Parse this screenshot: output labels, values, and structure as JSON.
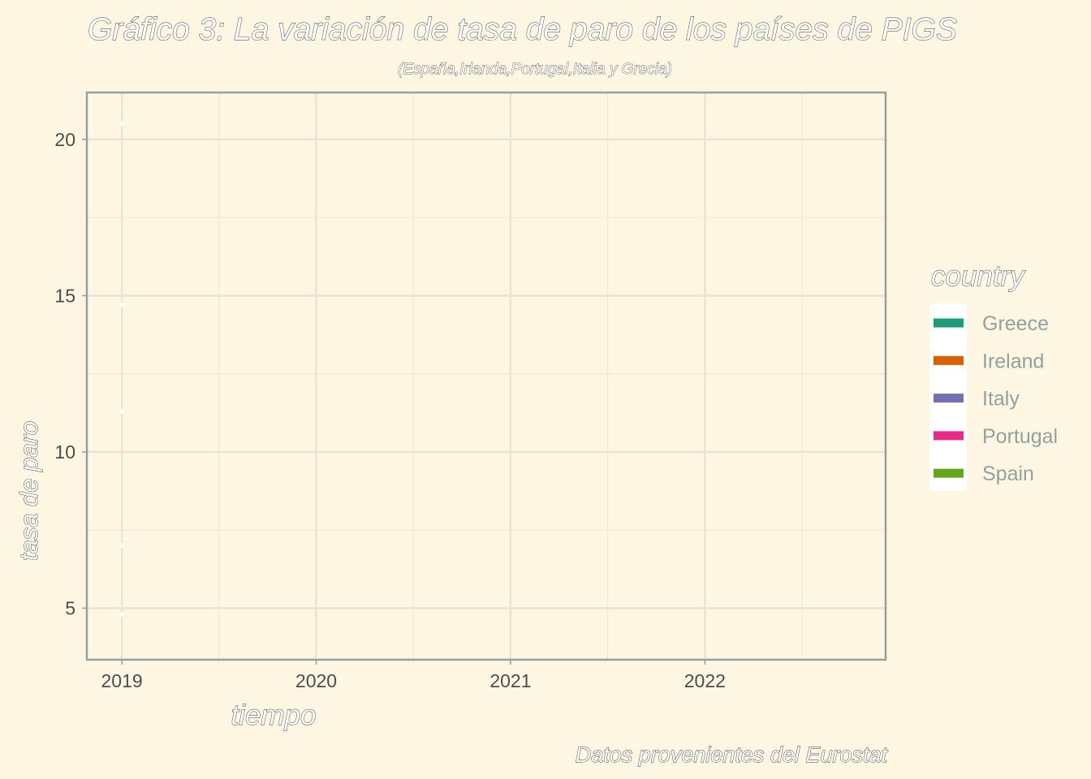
{
  "chart_data": {
    "type": "line",
    "title": "Gráfico 3: La variación de tasa de paro de los países de PIGS",
    "subtitle": "(España,Irlanda,Portugal,Italia y Grecia)",
    "xlabel": "tiempo",
    "ylabel": "tasa de paro",
    "caption": "Datos provenientes del Eurostat",
    "x_ticks": [
      "2019",
      "2020",
      "2021",
      "2022"
    ],
    "y_ticks": [
      "5",
      "10",
      "15",
      "20"
    ],
    "xlim": [
      2018.82,
      2022.93
    ],
    "ylim": [
      3.35,
      21.5
    ],
    "grid": true,
    "legend": {
      "title": "country",
      "position": "right",
      "entries": [
        "Greece",
        "Ireland",
        "Italy",
        "Portugal",
        "Spain"
      ]
    },
    "series": [
      {
        "name": "Greece",
        "color": "#1b9e77",
        "x": [
          2019
        ],
        "y": [
          20.5
        ]
      },
      {
        "name": "Spain",
        "color": "#66a61e",
        "x": [
          2019
        ],
        "y": [
          14.7
        ]
      },
      {
        "name": "Italy",
        "color": "#7570b3",
        "x": [
          2019
        ],
        "y": [
          11.3
        ]
      },
      {
        "name": "Portugal",
        "color": "#e7298a",
        "x": [
          2019
        ],
        "y": [
          7.0
        ]
      },
      {
        "name": "Ireland",
        "color": "#d95f02",
        "x": [
          2019
        ],
        "y": [
          4.8
        ]
      }
    ]
  }
}
